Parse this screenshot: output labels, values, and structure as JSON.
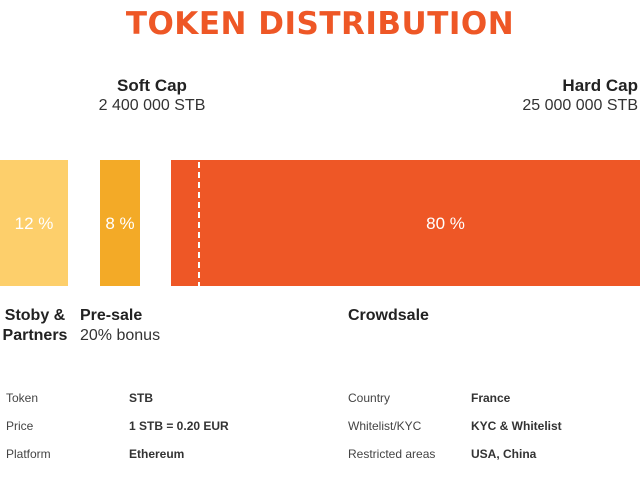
{
  "title": "TOKEN DISTRIBUTION",
  "soft_cap": {
    "label": "Soft Cap",
    "value": "2 400 000 STB"
  },
  "hard_cap": {
    "label": "Hard Cap",
    "value": "25 000 000 STB"
  },
  "chart_data": {
    "type": "bar",
    "orientation": "horizontal-stacked",
    "title": "TOKEN DISTRIBUTION",
    "categories": [
      "Stoby & Partners",
      "Pre-sale",
      "Crowdsale"
    ],
    "values": [
      12,
      8,
      80
    ],
    "value_labels": [
      "12 %",
      "8 %",
      "80 %"
    ],
    "colors": [
      "#fdcf6b",
      "#f3aa27",
      "#ee5726"
    ],
    "marker": {
      "label": "Soft Cap",
      "line_style": "dashed"
    }
  },
  "categories_text": [
    {
      "name": "Stoby &\nPartners",
      "sub": ""
    },
    {
      "name": "Pre-sale",
      "sub": "20% bonus"
    },
    {
      "name": "Crowdsale",
      "sub": ""
    }
  ],
  "info_left": [
    {
      "key": "Token",
      "value": "STB"
    },
    {
      "key": "Price",
      "value": "1 STB = 0.20 EUR"
    },
    {
      "key": "Platform",
      "value": "Ethereum"
    }
  ],
  "info_right": [
    {
      "key": "Country",
      "value": "France"
    },
    {
      "key": "Whitelist/KYC",
      "value": "KYC & Whitelist"
    },
    {
      "key": "Restricted areas",
      "value": "USA, China"
    }
  ]
}
